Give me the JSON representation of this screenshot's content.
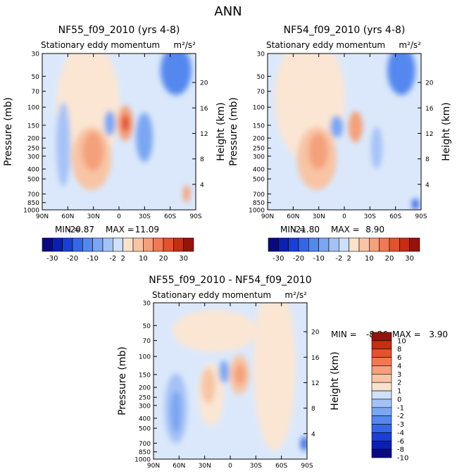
{
  "main_title": "ANN",
  "chart_data": [
    {
      "type": "contour",
      "title": "NF55_f09_2010 (yrs 4-8)",
      "subtitle": "Stationary eddy momentum",
      "units": "m²/s²",
      "x_ticks": [
        "90N",
        "60N",
        "30N",
        "0",
        "30S",
        "60S",
        "90S"
      ],
      "x_range": [
        90,
        -90
      ],
      "ylabel": "Pressure (mb)",
      "y_ticks": [
        "30",
        "50",
        "70",
        "100",
        "150",
        "200",
        "250",
        "300",
        "400",
        "500",
        "700",
        "850",
        "1000"
      ],
      "y_range": [
        1000,
        30
      ],
      "y2label": "Height (km)",
      "y2_ticks": [
        "20",
        "16",
        "12",
        "8",
        "4"
      ],
      "min_label": "MIN =",
      "min_value": "-20.87",
      "max_label": "MAX =",
      "max_value": "11.09",
      "features": [
        {
          "lat": 28,
          "p": 280,
          "value": 8
        },
        {
          "lat": -10,
          "p": 150,
          "value": 11
        },
        {
          "lat": 10,
          "p": 150,
          "value": -8
        },
        {
          "lat": -50,
          "p": 50,
          "value": -20
        },
        {
          "lat": 80,
          "p": 200,
          "value": -4
        },
        {
          "lat": -40,
          "p": 250,
          "value": -4
        }
      ]
    },
    {
      "type": "contour",
      "title": "NF54_f09_2010 (yrs 4-8)",
      "subtitle": "Stationary eddy momentum",
      "units": "m²/s²",
      "x_ticks": [
        "90N",
        "60N",
        "30N",
        "0",
        "30S",
        "60S",
        "90S"
      ],
      "x_range": [
        90,
        -90
      ],
      "ylabel": "Pressure (mb)",
      "y_ticks": [
        "30",
        "50",
        "70",
        "100",
        "150",
        "200",
        "250",
        "300",
        "400",
        "500",
        "700",
        "850",
        "1000"
      ],
      "y_range": [
        1000,
        30
      ],
      "y2label": "Height (km)",
      "y2_ticks": [
        "20",
        "16",
        "12",
        "8",
        "4"
      ],
      "min_label": "MIN =",
      "min_value": "-21.80",
      "max_label": "MAX =",
      "max_value": "8.90",
      "features": [
        {
          "lat": 28,
          "p": 280,
          "value": 6
        },
        {
          "lat": -10,
          "p": 160,
          "value": 8
        },
        {
          "lat": 10,
          "p": 150,
          "value": -6
        },
        {
          "lat": -50,
          "p": 50,
          "value": -20
        },
        {
          "lat": 80,
          "p": 200,
          "value": -3
        }
      ]
    },
    {
      "type": "contour",
      "title": "NF55_f09_2010 - NF54_f09_2010",
      "subtitle": "Stationary eddy momentum",
      "units": "m²/s²",
      "x_ticks": [
        "90N",
        "60N",
        "30N",
        "0",
        "30S",
        "60S",
        "90S"
      ],
      "x_range": [
        90,
        -90
      ],
      "ylabel": "Pressure (mb)",
      "y_ticks": [
        "30",
        "50",
        "70",
        "100",
        "150",
        "200",
        "250",
        "300",
        "400",
        "500",
        "700",
        "850",
        "1000"
      ],
      "y_range": [
        1000,
        30
      ],
      "y2label": "Height (km)",
      "y2_ticks": [
        "20",
        "16",
        "12",
        "8",
        "4"
      ],
      "min_label": "MIN =",
      "min_value": "-8.26",
      "max_label": "MAX =",
      "max_value": "3.90",
      "features": [
        {
          "lat": -10,
          "p": 150,
          "value": 3.9
        },
        {
          "lat": 30,
          "p": 180,
          "value": 2
        },
        {
          "lat": 10,
          "p": 140,
          "value": -2
        },
        {
          "lat": 70,
          "p": 300,
          "value": -4
        },
        {
          "lat": -85,
          "p": 800,
          "value": -8
        }
      ]
    }
  ],
  "colorbars": {
    "abs": {
      "labels": [
        "-30",
        "-20",
        "-10",
        "-2",
        "2",
        "10",
        "20",
        "30"
      ],
      "colors": [
        "#0a0a80",
        "#0b1fb0",
        "#1a3fd6",
        "#3566e6",
        "#5588ee",
        "#7aa6f2",
        "#a5c2f6",
        "#cfe0fa",
        "#fbe2cc",
        "#f8c4a4",
        "#f4a07a",
        "#ef7a52",
        "#e2522e",
        "#c22f14",
        "#92140a"
      ]
    },
    "diff": {
      "labels": [
        "10",
        "8",
        "6",
        "4",
        "3",
        "2",
        "1",
        "0",
        "-1",
        "-2",
        "-3",
        "-4",
        "-6",
        "-8",
        "-10"
      ],
      "colors": [
        "#92140a",
        "#c22f14",
        "#e2522e",
        "#ef7a52",
        "#f4a07a",
        "#f8c4a4",
        "#fbe2cc",
        "#cfe0fa",
        "#a5c2f6",
        "#7aa6f2",
        "#5588ee",
        "#3566e6",
        "#1a3fd6",
        "#0b1fb0",
        "#0a0a80"
      ]
    }
  }
}
